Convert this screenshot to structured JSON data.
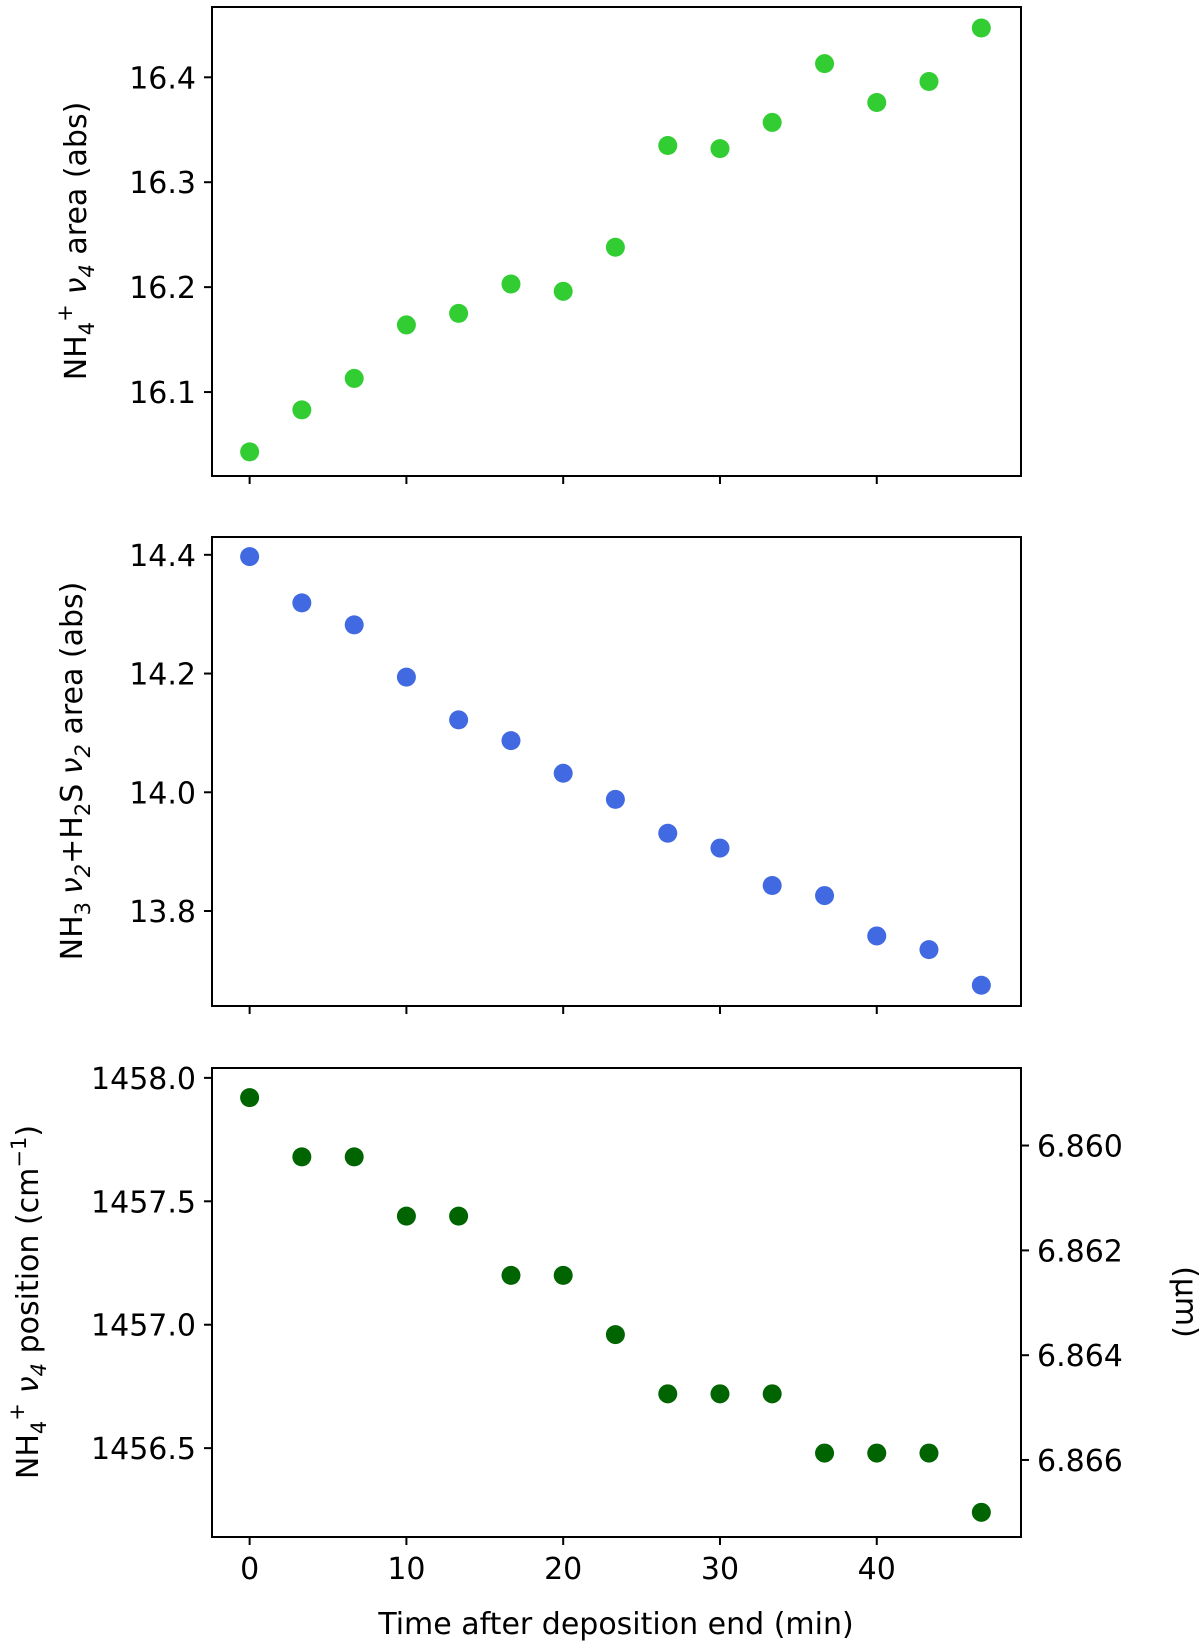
{
  "chart_data": [
    {
      "type": "scatter",
      "x": [
        0,
        3.33,
        6.67,
        10,
        13.33,
        16.67,
        20,
        23.33,
        26.67,
        30,
        33.33,
        36.67,
        40,
        43.33,
        46.67
      ],
      "series": [
        {
          "color": "#32cd32",
          "values": [
            16.043,
            16.083,
            16.113,
            16.164,
            16.175,
            16.203,
            16.196,
            16.238,
            16.335,
            16.332,
            16.357,
            16.413,
            16.376,
            16.396,
            16.447
          ]
        }
      ],
      "xlim": [
        -2.4,
        49.2
      ],
      "ylim": [
        16.02,
        16.467
      ],
      "xticks": [
        0,
        10,
        20,
        30,
        40
      ],
      "yticks": [
        16.1,
        16.2,
        16.3,
        16.4
      ],
      "ytick_labels": [
        "16.1",
        "16.2",
        "16.3",
        "16.4"
      ],
      "ylabel": {
        "pre": "NH",
        "sub": "4",
        "sup": "+",
        "greek": "ν",
        "gsub": "4",
        "post": " area (abs)"
      },
      "grid": false
    },
    {
      "type": "scatter",
      "x": [
        0,
        3.33,
        6.67,
        10,
        13.33,
        16.67,
        20,
        23.33,
        26.67,
        30,
        33.33,
        36.67,
        40,
        43.33,
        46.67
      ],
      "series": [
        {
          "color": "#4169e1",
          "values": [
            14.397,
            14.319,
            14.282,
            14.194,
            14.122,
            14.087,
            14.032,
            13.988,
            13.931,
            13.906,
            13.843,
            13.826,
            13.758,
            13.735,
            13.675
          ]
        }
      ],
      "xlim": [
        -2.4,
        49.2
      ],
      "ylim": [
        13.64,
        14.43
      ],
      "xticks": [
        0,
        10,
        20,
        30,
        40
      ],
      "yticks": [
        13.8,
        14.0,
        14.2,
        14.4
      ],
      "ytick_labels": [
        "13.8",
        "14.0",
        "14.2",
        "14.4"
      ],
      "ylabel": {
        "a": "NH",
        "asub": "3",
        "b": "ν",
        "bsub": "2",
        "c": "+H",
        "csub": "2",
        "d": "S ",
        "e": "ν",
        "esub": "2",
        "f": " area (abs)"
      },
      "grid": false
    },
    {
      "type": "scatter",
      "x": [
        0,
        3.33,
        6.67,
        10,
        13.33,
        16.67,
        20,
        23.33,
        26.67,
        30,
        33.33,
        36.67,
        40,
        43.33,
        46.67
      ],
      "series": [
        {
          "color": "#006400",
          "values": [
            1457.92,
            1457.68,
            1457.68,
            1457.44,
            1457.44,
            1457.2,
            1457.2,
            1456.96,
            1456.72,
            1456.72,
            1456.72,
            1456.48,
            1456.48,
            1456.48,
            1456.24
          ]
        }
      ],
      "xlim": [
        -2.4,
        49.2
      ],
      "ylim": [
        1456.14,
        1458.04
      ],
      "xticks": [
        0,
        10,
        20,
        30,
        40
      ],
      "xtick_labels": [
        "0",
        "10",
        "20",
        "30",
        "40"
      ],
      "yticks": [
        1456.5,
        1457.0,
        1457.5,
        1458.0
      ],
      "ytick_labels": [
        "1456.5",
        "1457.0",
        "1457.5",
        "1458.0"
      ],
      "y2ticks": [
        6.86,
        6.862,
        6.864,
        6.866
      ],
      "y2tick_labels": [
        "6.860",
        "6.862",
        "6.864",
        "6.866"
      ],
      "y2label": "(μm)",
      "xlabel": "Time after deposition end (min)",
      "ylabel": {
        "pre": "NH",
        "sub": "4",
        "sup": "+",
        "greek": "ν",
        "gsub": "4",
        "post": " position (cm",
        "sup2": "−1",
        "post2": ")"
      },
      "grid": false
    }
  ]
}
